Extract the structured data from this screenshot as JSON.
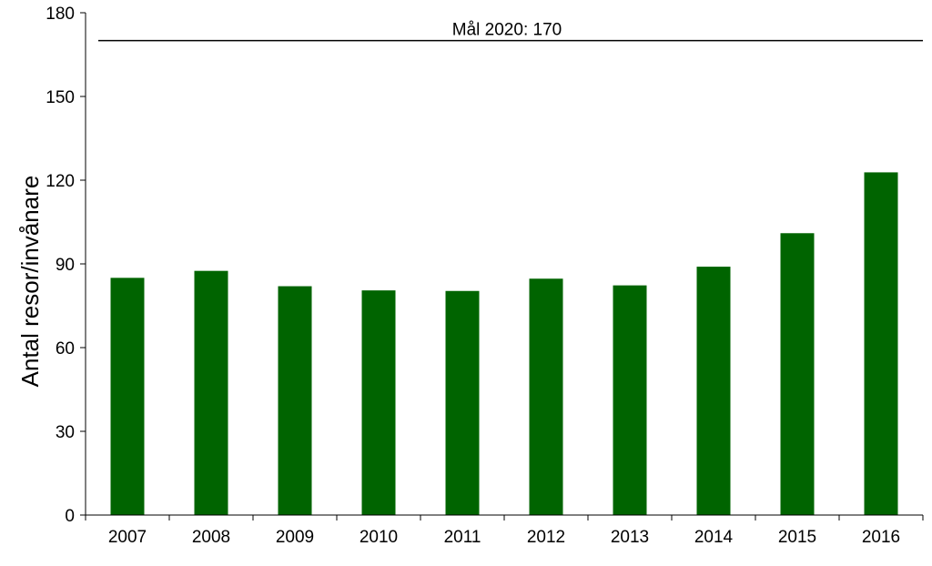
{
  "chart_data": {
    "type": "bar",
    "categories": [
      "2007",
      "2008",
      "2009",
      "2010",
      "2011",
      "2012",
      "2013",
      "2014",
      "2015",
      "2016"
    ],
    "values": [
      85,
      87.5,
      82,
      80.5,
      80.3,
      84.7,
      82.3,
      89,
      101,
      122.8
    ],
    "ylabel": "Antal resor/invånare",
    "ylim": [
      0,
      180
    ],
    "yticks": [
      "0",
      "30",
      "60",
      "90",
      "120",
      "150",
      "180"
    ],
    "bar_color": "#006400",
    "grid": false,
    "reference_line": {
      "value": 170,
      "label": "Mål 2020: 170"
    }
  }
}
